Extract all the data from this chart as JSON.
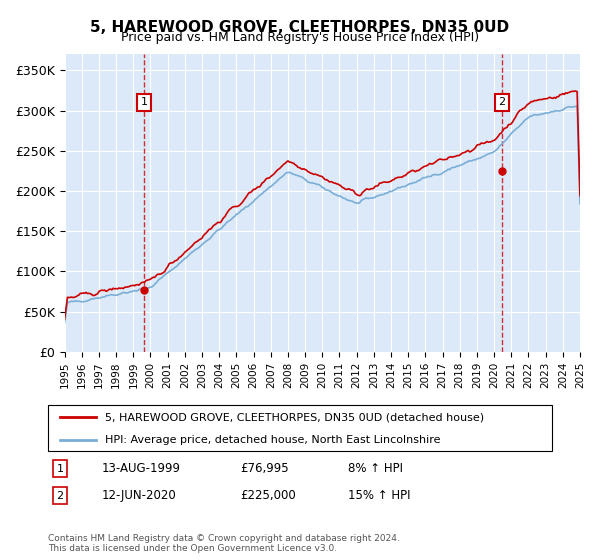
{
  "title": "5, HAREWOOD GROVE, CLEETHORPES, DN35 0UD",
  "subtitle": "Price paid vs. HM Land Registry's House Price Index (HPI)",
  "legend_line1": "5, HAREWOOD GROVE, CLEETHORPES, DN35 0UD (detached house)",
  "legend_line2": "HPI: Average price, detached house, North East Lincolnshire",
  "annotation1": {
    "label": "1",
    "date": "13-AUG-1999",
    "price": "£76,995",
    "hpi": "8% ↑ HPI"
  },
  "annotation2": {
    "label": "2",
    "date": "12-JUN-2020",
    "price": "£225,000",
    "hpi": "15% ↑ HPI"
  },
  "footnote": "Contains HM Land Registry data © Crown copyright and database right 2024.\nThis data is licensed under the Open Government Licence v3.0.",
  "background_color": "#dce9f8",
  "red_color": "#cc0000",
  "blue_color": "#7aaed6",
  "ylim": [
    0,
    370000
  ],
  "yticks": [
    0,
    50000,
    100000,
    150000,
    200000,
    250000,
    300000,
    350000
  ],
  "ytick_labels": [
    "£0",
    "£50K",
    "£100K",
    "£150K",
    "£200K",
    "£250K",
    "£300K",
    "£350K"
  ]
}
